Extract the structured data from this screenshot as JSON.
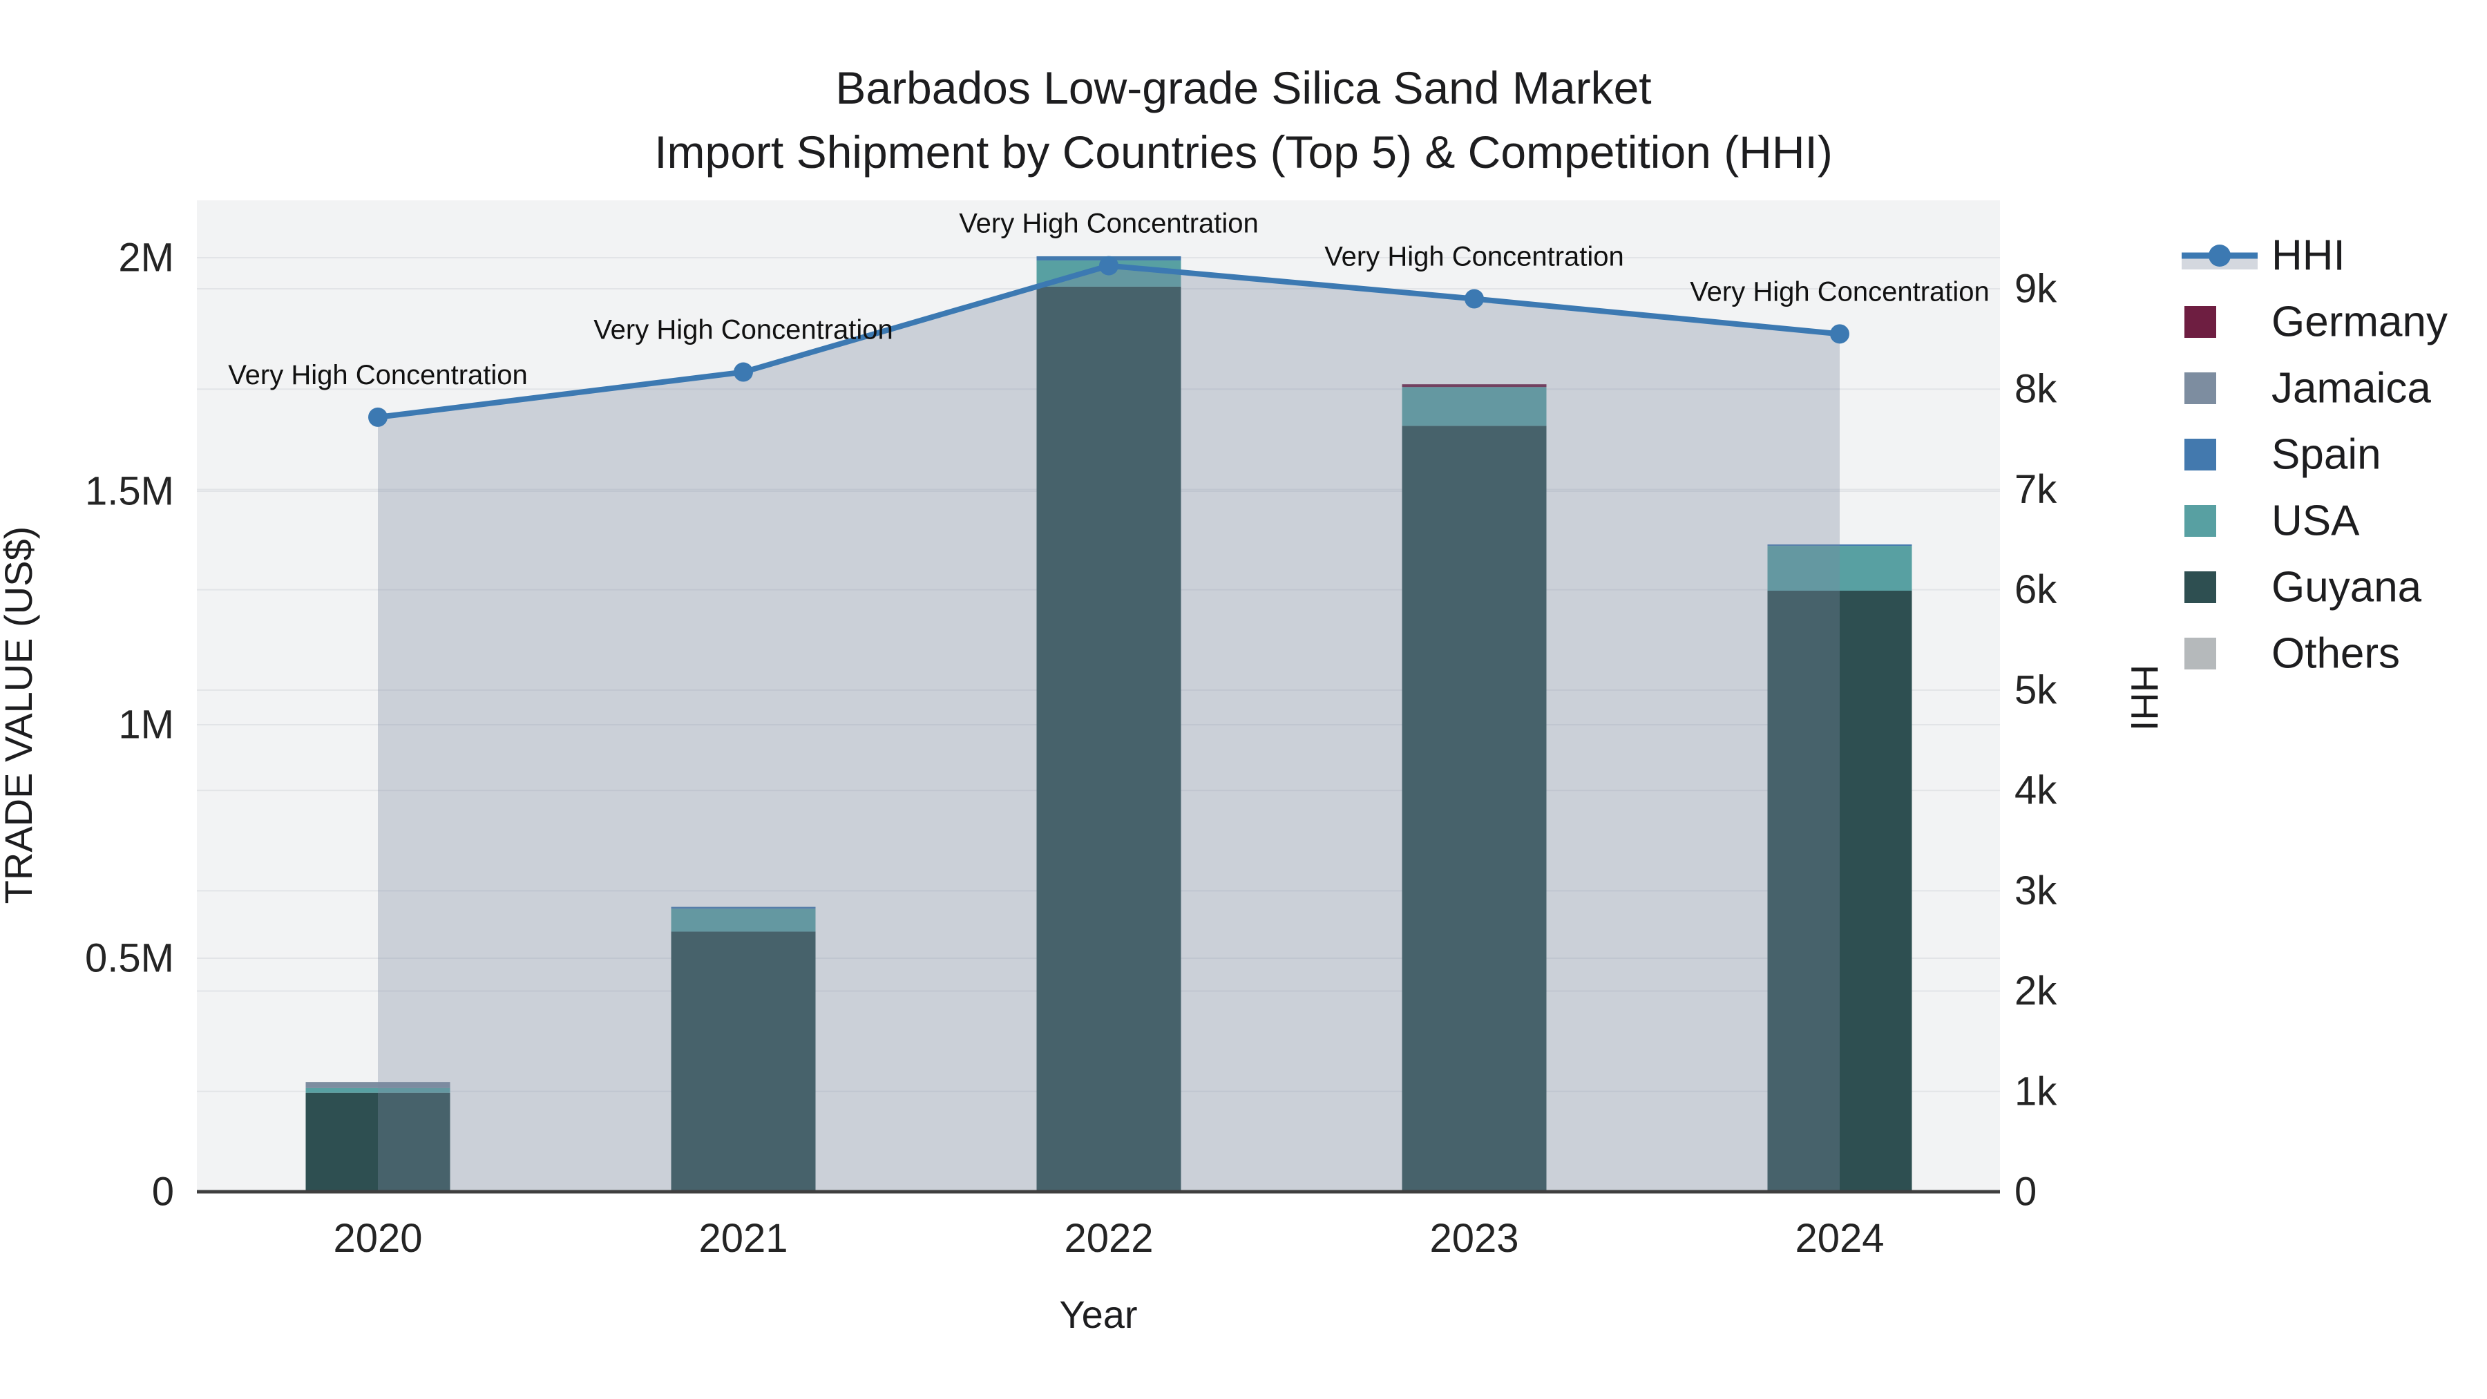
{
  "title": {
    "line1": "Barbados Low-grade Silica Sand Market",
    "line2": "Import Shipment by Countries (Top 5) & Competition (HHI)"
  },
  "chart_data": {
    "type": "bar+line",
    "categories": [
      "2020",
      "2021",
      "2022",
      "2023",
      "2024"
    ],
    "x_axis": {
      "title": "Year"
    },
    "y_left": {
      "title": "TRADE VALUE (US$)",
      "ticks": [
        {
          "label": "0",
          "value": 0
        },
        {
          "label": "0.5M",
          "value": 500000
        },
        {
          "label": "1M",
          "value": 1000000
        },
        {
          "label": "1.5M",
          "value": 1500000
        },
        {
          "label": "2M",
          "value": 2000000
        }
      ],
      "range": [
        0,
        2123000
      ]
    },
    "y_right": {
      "title": "HHI",
      "ticks": [
        {
          "label": "0",
          "value": 0
        },
        {
          "label": "1k",
          "value": 1000
        },
        {
          "label": "2k",
          "value": 2000
        },
        {
          "label": "3k",
          "value": 3000
        },
        {
          "label": "4k",
          "value": 4000
        },
        {
          "label": "5k",
          "value": 5000
        },
        {
          "label": "6k",
          "value": 6000
        },
        {
          "label": "7k",
          "value": 7000
        },
        {
          "label": "8k",
          "value": 8000
        },
        {
          "label": "9k",
          "value": 9000
        }
      ],
      "range": [
        0,
        9880
      ]
    },
    "bar_series": [
      {
        "name": "Germany",
        "color": "#6e1e41",
        "values": [
          0,
          0,
          0,
          6000,
          0
        ]
      },
      {
        "name": "Jamaica",
        "color": "#7d8da0",
        "values": [
          13000,
          0,
          0,
          0,
          0
        ]
      },
      {
        "name": "Spain",
        "color": "#4379ae",
        "values": [
          0,
          4000,
          9000,
          0,
          3000
        ]
      },
      {
        "name": "USA",
        "color": "#58a0a2",
        "values": [
          10000,
          49000,
          56000,
          83000,
          96000
        ]
      },
      {
        "name": "Guyana",
        "color": "#2e4f51",
        "values": [
          212000,
          557000,
          1938000,
          1640000,
          1287000
        ]
      },
      {
        "name": "Others",
        "color": "#b5b9bb",
        "values": [
          0,
          0,
          0,
          0,
          0
        ]
      }
    ],
    "stack_order": [
      "Others",
      "Guyana",
      "USA",
      "Spain",
      "Jamaica",
      "Germany"
    ],
    "line_series": {
      "name": "HHI",
      "color": "#3c79b2",
      "area_fill": "rgba(125,138,160,0.33)",
      "values": [
        7720,
        8170,
        9230,
        8900,
        8550
      ]
    },
    "annotations": [
      {
        "text": "Very High Concentration",
        "category": "2020"
      },
      {
        "text": "Very High Concentration",
        "category": "2021"
      },
      {
        "text": "Very High Concentration",
        "category": "2022"
      },
      {
        "text": "Very High Concentration",
        "category": "2023"
      },
      {
        "text": "Very High Concentration",
        "category": "2024"
      }
    ],
    "legend": {
      "entries": [
        "HHI",
        "Germany",
        "Jamaica",
        "Spain",
        "USA",
        "Guyana",
        "Others"
      ],
      "position": "right"
    },
    "colors": {
      "plot_background": "#f2f3f4",
      "gridline": "#e2e4e7",
      "axis_line": "#3f3f3f",
      "legend_band": "#d4d8df"
    }
  }
}
